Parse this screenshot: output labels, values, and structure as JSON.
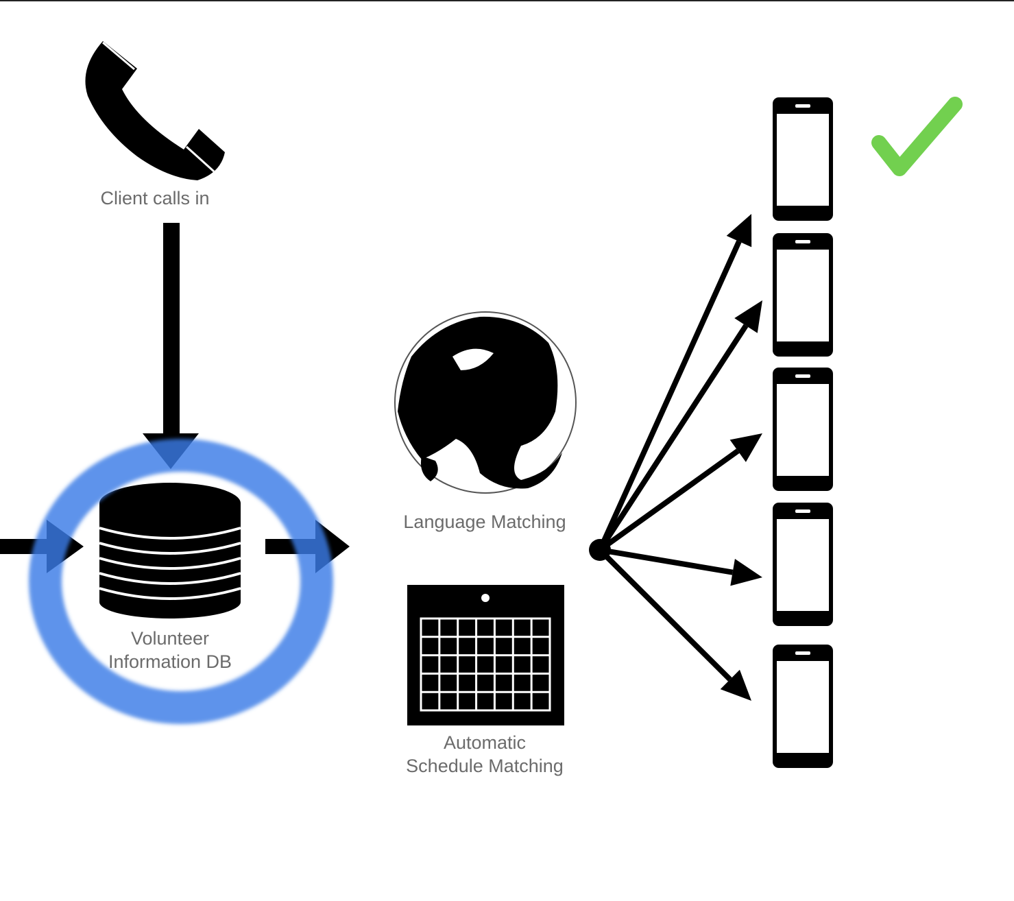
{
  "labels": {
    "client": "Client calls in",
    "db_line1": "Volunteer",
    "db_line2": "Information DB",
    "language": "Language Matching",
    "schedule_line1": "Automatic",
    "schedule_line2": "Schedule Matching"
  },
  "icons": {
    "client": "phone-handset-icon",
    "db": "database-icon",
    "language": "globe-icon",
    "schedule": "calendar-icon",
    "devices": "smartphone-icon",
    "success": "checkmark-icon"
  },
  "colors": {
    "ink": "#000000",
    "label": "#6b6b6b",
    "highlight_ring": "#3b7be6",
    "check": "#72d04f"
  },
  "devices_count": 5
}
